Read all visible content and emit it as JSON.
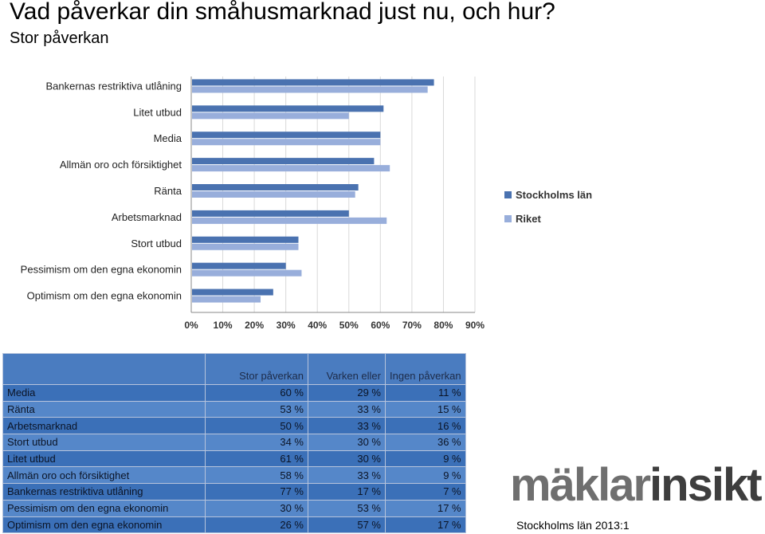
{
  "title": "Vad påverkar din småhusmarknad just nu, och hur?",
  "subtitle": "Stor påverkan",
  "chart_data": {
    "type": "bar",
    "orientation": "horizontal",
    "categories": [
      "Bankernas restriktiva utlåning",
      "Litet utbud",
      "Media",
      "Allmän oro och försiktighet",
      "Ränta",
      "Arbetsmarknad",
      "Stort utbud",
      "Pessimism om den egna ekonomin",
      "Optimism om den egna ekonomin"
    ],
    "series": [
      {
        "name": "Stockholms län",
        "color": "#4a72b0",
        "values": [
          77,
          61,
          60,
          58,
          53,
          50,
          34,
          30,
          26
        ]
      },
      {
        "name": "Riket",
        "color": "#98aedb",
        "values": [
          75,
          50,
          60,
          63,
          52,
          62,
          34,
          35,
          22
        ]
      }
    ],
    "xlim": [
      0,
      90
    ],
    "xticks": [
      "0%",
      "10%",
      "20%",
      "30%",
      "40%",
      "50%",
      "60%",
      "70%",
      "80%",
      "90%"
    ],
    "grid": true,
    "legend_position": "right"
  },
  "table": {
    "headers": [
      "Stor påverkan",
      "Varken eller",
      "Ingen påverkan"
    ],
    "rows": [
      {
        "label": "Media",
        "values": [
          "60 %",
          "29 %",
          "11 %"
        ]
      },
      {
        "label": "Ränta",
        "values": [
          "53 %",
          "33 %",
          "15 %"
        ]
      },
      {
        "label": "Arbetsmarknad",
        "values": [
          "50 %",
          "33 %",
          "16 %"
        ]
      },
      {
        "label": "Stort utbud",
        "values": [
          "34 %",
          "30 %",
          "36 %"
        ]
      },
      {
        "label": "Litet utbud",
        "values": [
          "61 %",
          "30 %",
          "9 %"
        ]
      },
      {
        "label": "Allmän oro och försiktighet",
        "values": [
          "58 %",
          "33 %",
          "9 %"
        ]
      },
      {
        "label": "Bankernas restriktiva utlåning",
        "values": [
          "77 %",
          "17 %",
          "7 %"
        ]
      },
      {
        "label": "Pessimism om den egna ekonomin",
        "values": [
          "30 %",
          "53 %",
          "17 %"
        ]
      },
      {
        "label": "Optimism om den egna ekonomin",
        "values": [
          "26 %",
          "57 %",
          "17 %"
        ]
      }
    ]
  },
  "logo": {
    "part1": "mäklar",
    "part2": "insikt"
  },
  "footer": "Stockholms län 2013:1"
}
